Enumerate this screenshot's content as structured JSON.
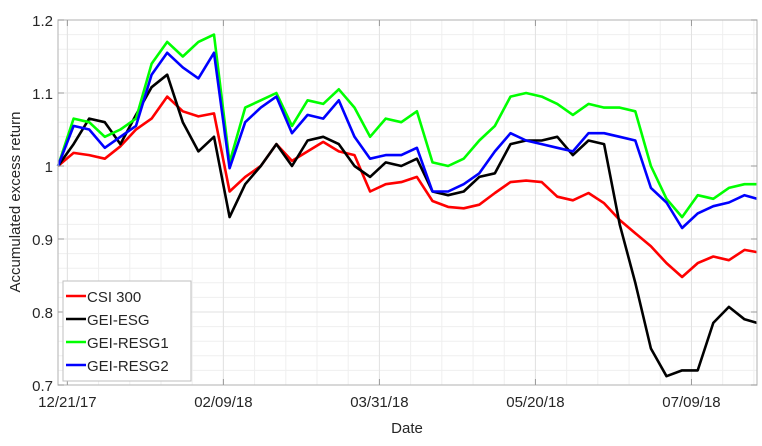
{
  "chart_data": {
    "type": "line",
    "title": "",
    "xlabel": "Date",
    "ylabel": "Accumulated excess return",
    "xlim": [
      "2017-12-18",
      "2018-07-30"
    ],
    "ylim": [
      0.7,
      1.2
    ],
    "yticks": [
      0.7,
      0.8,
      0.9,
      1.0,
      1.1,
      1.2
    ],
    "ytick_labels": [
      "0.7",
      "0.8",
      "0.9",
      "1",
      "1.1",
      "1.2"
    ],
    "xticks": [
      "2017-12-21",
      "2018-02-09",
      "2018-03-31",
      "2018-05-20",
      "2018-07-09"
    ],
    "xtick_labels": [
      "12/21/17",
      "02/09/18",
      "03/31/18",
      "05/20/18",
      "07/09/18"
    ],
    "grid": "major and minor",
    "legend_position": "bottom-left",
    "x": [
      "2017-12-18",
      "2017-12-23",
      "2017-12-28",
      "2018-01-02",
      "2018-01-07",
      "2018-01-12",
      "2018-01-17",
      "2018-01-22",
      "2018-01-27",
      "2018-02-01",
      "2018-02-06",
      "2018-02-11",
      "2018-02-16",
      "2018-02-21",
      "2018-02-26",
      "2018-03-03",
      "2018-03-08",
      "2018-03-13",
      "2018-03-18",
      "2018-03-23",
      "2018-03-28",
      "2018-04-02",
      "2018-04-07",
      "2018-04-12",
      "2018-04-17",
      "2018-04-22",
      "2018-04-27",
      "2018-05-02",
      "2018-05-07",
      "2018-05-12",
      "2018-05-17",
      "2018-05-22",
      "2018-05-27",
      "2018-06-01",
      "2018-06-06",
      "2018-06-11",
      "2018-06-16",
      "2018-06-21",
      "2018-06-26",
      "2018-07-01",
      "2018-07-06",
      "2018-07-11",
      "2018-07-16",
      "2018-07-21",
      "2018-07-26",
      "2018-07-30"
    ],
    "series": [
      {
        "name": "CSI 300",
        "color": "#ff0000",
        "values": [
          1.0,
          1.018,
          1.015,
          1.01,
          1.027,
          1.05,
          1.065,
          1.095,
          1.075,
          1.068,
          1.072,
          0.965,
          0.985,
          1.0,
          1.03,
          1.007,
          1.02,
          1.033,
          1.02,
          1.015,
          0.965,
          0.975,
          0.978,
          0.985,
          0.952,
          0.944,
          0.942,
          0.947,
          0.963,
          0.978,
          0.98,
          0.978,
          0.958,
          0.953,
          0.963,
          0.949,
          0.926,
          0.908,
          0.89,
          0.867,
          0.848,
          0.867,
          0.876,
          0.871,
          0.885,
          0.882
        ]
      },
      {
        "name": "GEI-ESG",
        "color": "#000000",
        "values": [
          1.0,
          1.03,
          1.065,
          1.06,
          1.03,
          1.07,
          1.108,
          1.125,
          1.06,
          1.02,
          1.04,
          0.93,
          0.975,
          1.0,
          1.03,
          1.0,
          1.035,
          1.04,
          1.03,
          1.0,
          0.985,
          1.005,
          1.0,
          1.01,
          0.965,
          0.96,
          0.965,
          0.985,
          0.99,
          1.03,
          1.035,
          1.035,
          1.04,
          1.015,
          1.035,
          1.03,
          0.92,
          0.84,
          0.75,
          0.712,
          0.72,
          0.72,
          0.785,
          0.807,
          0.79,
          0.785
        ]
      },
      {
        "name": "GEI-RESG1",
        "color": "#00ff00",
        "values": [
          1.0,
          1.065,
          1.06,
          1.04,
          1.05,
          1.065,
          1.14,
          1.17,
          1.15,
          1.17,
          1.18,
          1.005,
          1.08,
          1.09,
          1.1,
          1.055,
          1.09,
          1.085,
          1.105,
          1.08,
          1.04,
          1.065,
          1.06,
          1.075,
          1.005,
          1.0,
          1.01,
          1.035,
          1.055,
          1.095,
          1.1,
          1.095,
          1.085,
          1.07,
          1.085,
          1.08,
          1.08,
          1.075,
          1.0,
          0.955,
          0.93,
          0.96,
          0.955,
          0.97,
          0.975,
          0.975
        ]
      },
      {
        "name": "GEI-RESG2",
        "color": "#0000ff",
        "values": [
          1.0,
          1.055,
          1.05,
          1.025,
          1.04,
          1.055,
          1.125,
          1.155,
          1.135,
          1.12,
          1.155,
          0.997,
          1.06,
          1.08,
          1.095,
          1.045,
          1.07,
          1.065,
          1.09,
          1.04,
          1.01,
          1.015,
          1.015,
          1.025,
          0.965,
          0.965,
          0.975,
          0.99,
          1.02,
          1.045,
          1.035,
          1.03,
          1.025,
          1.02,
          1.045,
          1.045,
          1.04,
          1.035,
          0.97,
          0.95,
          0.915,
          0.935,
          0.945,
          0.95,
          0.96,
          0.955
        ]
      }
    ]
  }
}
